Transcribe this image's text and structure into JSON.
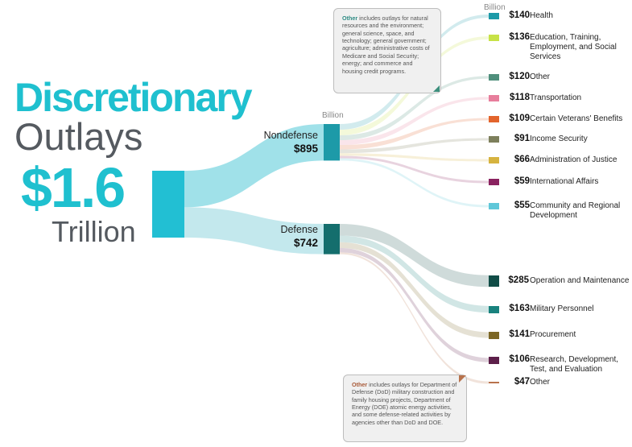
{
  "title": {
    "line1": "Discretionary",
    "line2": "Outlays",
    "total": "$1.6",
    "unit": "Trillion"
  },
  "billion_label": "Billion",
  "notes": {
    "nondefense": {
      "bold": "Other",
      "text": " includes outlays for natural resources and the environment; general science, space, and technology; general government; agriculture; administrative costs of Medicare and Social Security; energy; and commerce and housing credit programs."
    },
    "defense": {
      "bold": "Other",
      "text": " includes outlays for Department of Defense (DoD) military construction and family housing projects, Department of Energy (DOE) atomic energy activities, and some defense-related activities by agencies other than DoD and DOE."
    }
  },
  "colors": {
    "accent": "#1fc0cf",
    "source_bar": "#22bfd3",
    "nondefense": "#1d9aa8",
    "defense": "#146e6d",
    "text_gray": "#555a60"
  },
  "chart_data": {
    "type": "sankey",
    "unit": "Billion",
    "total": 1637,
    "groups": [
      {
        "name": "Nondefense",
        "value": 895,
        "value_label": "$895",
        "color": "#1d9aa8",
        "flow_color": "#8fdce5",
        "items": [
          {
            "value": 140,
            "value_label": "$140",
            "label": "Health",
            "color": "#1d9aa8"
          },
          {
            "value": 136,
            "value_label": "$136",
            "label": "Education, Training, Employment, and Social Services",
            "color": "#c7e247"
          },
          {
            "value": 120,
            "value_label": "$120",
            "label": "Other",
            "color": "#4f8f7c"
          },
          {
            "value": 118,
            "value_label": "$118",
            "label": "Transportation",
            "color": "#e77e9c"
          },
          {
            "value": 109,
            "value_label": "$109",
            "label": "Certain Veterans' Benefits",
            "color": "#e3642c"
          },
          {
            "value": 91,
            "value_label": "$91",
            "label": "Income Security",
            "color": "#7d7f5c"
          },
          {
            "value": 66,
            "value_label": "$66",
            "label": "Administration of Justice",
            "color": "#d6b33f"
          },
          {
            "value": 59,
            "value_label": "$59",
            "label": "International Affairs",
            "color": "#8a2260"
          },
          {
            "value": 55,
            "value_label": "$55",
            "label": "Community and Regional Development",
            "color": "#5fc7d9"
          }
        ]
      },
      {
        "name": "Defense",
        "value": 742,
        "value_label": "$742",
        "color": "#146e6d",
        "flow_color": "#b8e4ea",
        "items": [
          {
            "value": 285,
            "value_label": "$285",
            "label": "Operation and Maintenance",
            "color": "#114d47"
          },
          {
            "value": 163,
            "value_label": "$163",
            "label": "Military Personnel",
            "color": "#19827e"
          },
          {
            "value": 141,
            "value_label": "$141",
            "label": "Procurement",
            "color": "#7c6726"
          },
          {
            "value": 106,
            "value_label": "$106",
            "label": "Research, Development, Test, and Evaluation",
            "color": "#5d1f4a"
          },
          {
            "value": 47,
            "value_label": "$47",
            "label": "Other",
            "color": "#b8724c"
          }
        ]
      }
    ]
  }
}
